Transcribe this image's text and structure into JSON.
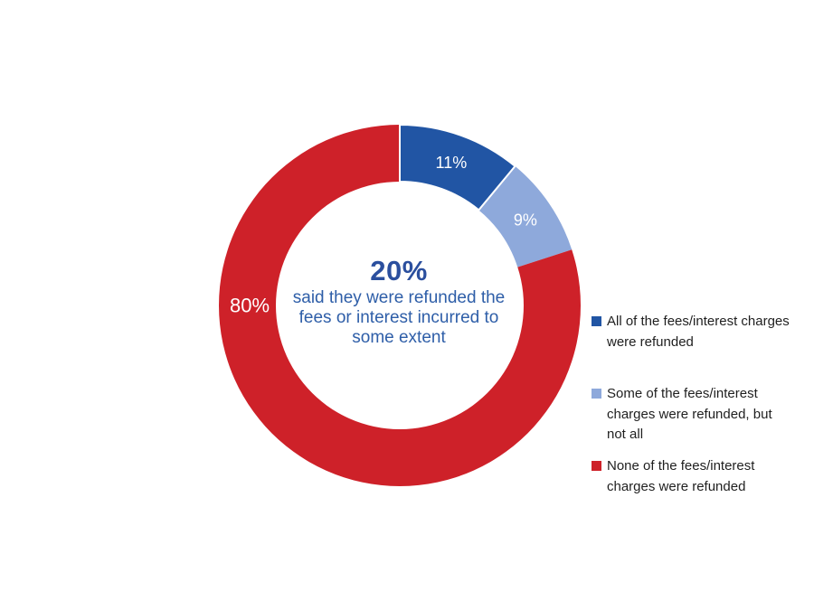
{
  "figure": {
    "background": "#FFFFFF"
  },
  "chart_data": {
    "type": "pie",
    "subtype": "donut",
    "title": "",
    "total": 100,
    "hole_ratio": 0.685,
    "outer_radius": 200,
    "start_angle_deg": 0,
    "clockwise": true,
    "legend_position": "right",
    "slice_label_color": "#FFFFFF",
    "slices": [
      {
        "name": "All of the fees/interest charges were refunded",
        "value": 11,
        "display": "11%",
        "color": "#2155A4",
        "label_radius": 168,
        "label_font_size": 18,
        "border": {
          "color": "#FFFFFF",
          "width": 2
        }
      },
      {
        "name": "Some of the fees/interest charges were refunded, but not all",
        "value": 9,
        "display": "9%",
        "color": "#8EA9DB",
        "label_radius": 168,
        "label_font_size": 18
      },
      {
        "name": "None of the fees/interest charges were refunded",
        "value": 80,
        "display": "80%",
        "color": "#CE2129",
        "label_angle_deg": 270,
        "label_radius": 166,
        "label_font_size": 22
      }
    ],
    "center_label": {
      "headline": "20%",
      "headline_color": "#2B4F9E",
      "subtext": "said they were refunded the fees or interest incurred to some extent",
      "subtext_color": "#2E5EA8",
      "lines": [
        "said they were refunded the",
        "fees or interest incurred to",
        "some extent"
      ]
    }
  },
  "legend": {
    "text_color": "#1F1F1F",
    "items": [
      {
        "color": "#2155A4",
        "label": "All of the fees/interest charges were refunded",
        "lines": [
          "All of the fees/interest charges",
          "were refunded"
        ]
      },
      {
        "color": "#8EA9DB",
        "label": "Some of the fees/interest charges were refunded, but not all",
        "lines": [
          "Some of the fees/interest",
          "charges were refunded, but",
          "not all"
        ]
      },
      {
        "color": "#CE2129",
        "label": "None of the fees/interest charges were refunded",
        "lines": [
          "None of the fees/interest",
          "charges were refunded"
        ]
      }
    ]
  }
}
